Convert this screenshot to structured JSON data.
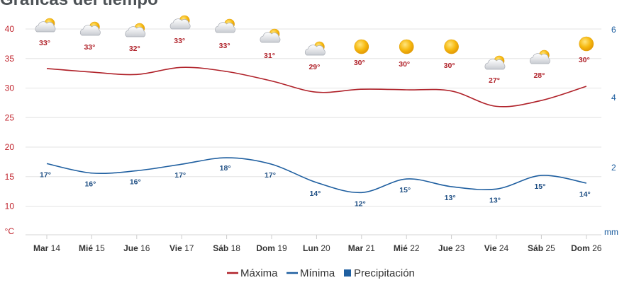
{
  "title": "Gráficas del tiempo",
  "chart_data": {
    "type": "line",
    "categories": [
      {
        "day": "Mar",
        "date": "14"
      },
      {
        "day": "Mié",
        "date": "15"
      },
      {
        "day": "Jue",
        "date": "16"
      },
      {
        "day": "Vie",
        "date": "17"
      },
      {
        "day": "Sáb",
        "date": "18"
      },
      {
        "day": "Dom",
        "date": "19"
      },
      {
        "day": "Lun",
        "date": "20"
      },
      {
        "day": "Mar",
        "date": "21"
      },
      {
        "day": "Mié",
        "date": "22"
      },
      {
        "day": "Jue",
        "date": "23"
      },
      {
        "day": "Vie",
        "date": "24"
      },
      {
        "day": "Sáb",
        "date": "25"
      },
      {
        "day": "Dom",
        "date": "26"
      }
    ],
    "series": [
      {
        "name": "Máxima",
        "color": "#b0222a",
        "values": [
          33.3,
          32.7,
          32.3,
          33.5,
          32.8,
          31.2,
          29.3,
          29.8,
          29.7,
          29.5,
          26.9,
          27.9,
          30.3
        ],
        "labels": [
          "33°",
          "33°",
          "32°",
          "33°",
          "33°",
          "31°",
          "29°",
          "30°",
          "30°",
          "30°",
          "27°",
          "28°",
          "30°"
        ]
      },
      {
        "name": "Mínima",
        "color": "#1f5fa0",
        "values": [
          17.2,
          15.6,
          16.0,
          17.1,
          18.2,
          17.1,
          14.0,
          12.3,
          14.6,
          13.3,
          12.9,
          15.2,
          13.9
        ],
        "labels": [
          "17°",
          "16°",
          "16°",
          "17°",
          "18°",
          "17°",
          "14°",
          "12°",
          "15°",
          "13°",
          "13°",
          "15°",
          "14°"
        ]
      },
      {
        "name": "Precipitación",
        "color": "#1f5fa0",
        "values": [
          0,
          0,
          0,
          0,
          0,
          0,
          0,
          0,
          0,
          0,
          0,
          0,
          0
        ]
      }
    ],
    "weather_icons": [
      "sun-cloud-icon",
      "sun-cloud-icon",
      "sun-cloud-icon",
      "sun-cloud-icon",
      "sun-cloud-icon",
      "sun-cloud-icon",
      "sun-cloud-icon",
      "sun-icon",
      "sun-icon",
      "sun-icon",
      "sun-cloud-icon",
      "sun-cloud-icon",
      "sun-icon"
    ],
    "yleft": {
      "label": "°C",
      "ticks": [
        "10",
        "15",
        "20",
        "25",
        "30",
        "35",
        "40"
      ],
      "lim": [
        5,
        42
      ]
    },
    "yright": {
      "label": "mm",
      "ticks": [
        "2",
        "4",
        "6"
      ]
    },
    "grid": true,
    "legend": "bottom-center"
  }
}
